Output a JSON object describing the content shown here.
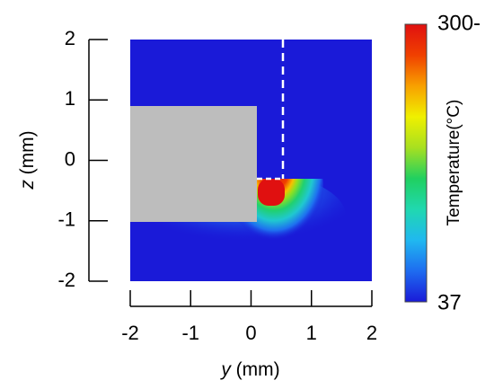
{
  "chart_data": {
    "type": "heatmap",
    "xlabel_var": "y",
    "xlabel_unit": " (mm)",
    "ylabel_var": "z",
    "ylabel_unit": " (mm)",
    "x_ticks": [
      "-2",
      "-1",
      "0",
      "1",
      "2"
    ],
    "y_ticks": [
      "2",
      "1",
      "0",
      "-1",
      "-2"
    ],
    "xlim": [
      -2,
      2
    ],
    "ylim": [
      -2,
      2
    ],
    "colorbar": {
      "label": "Temperature(°C)",
      "min_label": "37",
      "max_label": "300-",
      "min": 37,
      "max": 300,
      "colors": [
        "#1a1ad8",
        "#1e6cf0",
        "#20b8f0",
        "#20d8b0",
        "#20d060",
        "#a8e020",
        "#f0f000",
        "#f8a000",
        "#f04000",
        "#e01010"
      ]
    },
    "background_value": 37,
    "gray_block": {
      "y": [
        -2,
        0.15
      ],
      "z": [
        -1,
        0.9
      ]
    },
    "dashed_line": {
      "y": 0.55,
      "z": [
        -0.3,
        2
      ]
    },
    "dashed_segment": {
      "y": [
        0.15,
        0.55
      ],
      "z": -0.3
    },
    "hot_region": {
      "y": [
        0.15,
        0.65
      ],
      "z": [
        -0.85,
        -0.3
      ],
      "value": 300
    },
    "surface_z": -0.3
  }
}
